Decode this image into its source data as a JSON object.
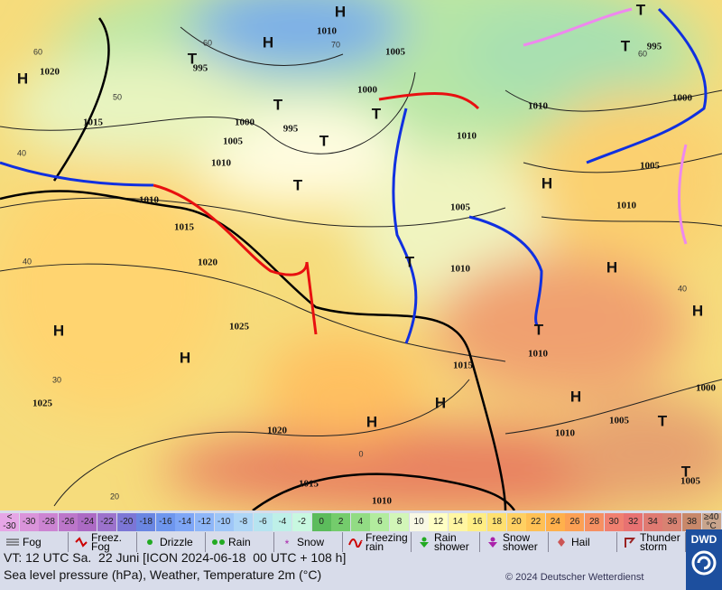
{
  "map": {
    "pressure_labels": [
      "1020",
      "1015",
      "1010",
      "1015",
      "1020",
      "1025",
      "1025",
      "1020",
      "1015",
      "1010",
      "1010",
      "1005",
      "1000",
      "1000",
      "995",
      "1005",
      "1010",
      "995",
      "1010",
      "1005",
      "1010",
      "1015",
      "1010",
      "1010",
      "995",
      "1000",
      "1005",
      "1010",
      "1000",
      "1005",
      "1010",
      "1005"
    ],
    "temperature_labels": [
      "60",
      "50",
      "40",
      "40",
      "30",
      "20",
      "60",
      "70",
      "60",
      "40",
      "0"
    ],
    "highs": [
      "H",
      "H",
      "H",
      "H",
      "H",
      "H",
      "H",
      "H",
      "H",
      "H",
      "H"
    ],
    "thunder": [
      "T",
      "T",
      "T",
      "T",
      "T",
      "T",
      "T",
      "T",
      "T",
      "T",
      "T"
    ]
  },
  "scale": [
    {
      "label": "<\n-30",
      "color": "#e6a6e6"
    },
    {
      "label": "-30",
      "color": "#da94da"
    },
    {
      "label": "-28",
      "color": "#cc84d2"
    },
    {
      "label": "-26",
      "color": "#bc76ca"
    },
    {
      "label": "-24",
      "color": "#ac6ac4"
    },
    {
      "label": "-22",
      "color": "#9c72cc"
    },
    {
      "label": "-20",
      "color": "#7c76d6"
    },
    {
      "label": "-18",
      "color": "#6a86e2"
    },
    {
      "label": "-16",
      "color": "#6e96ee"
    },
    {
      "label": "-14",
      "color": "#7ea6f6"
    },
    {
      "label": "-12",
      "color": "#8eb6f8"
    },
    {
      "label": "-10",
      "color": "#9ec6f8"
    },
    {
      "label": "-8",
      "color": "#aed6f6"
    },
    {
      "label": "-6",
      "color": "#b6e4f0"
    },
    {
      "label": "-4",
      "color": "#bef0e8"
    },
    {
      "label": "-2",
      "color": "#c8f8e0"
    },
    {
      "label": "0",
      "color": "#5cbc5c"
    },
    {
      "label": "2",
      "color": "#74cc6c"
    },
    {
      "label": "4",
      "color": "#92dc84"
    },
    {
      "label": "6",
      "color": "#b2ec9e"
    },
    {
      "label": "8",
      "color": "#d2f6b8"
    },
    {
      "label": "10",
      "color": "#f8f8e4"
    },
    {
      "label": "12",
      "color": "#ffffc4"
    },
    {
      "label": "14",
      "color": "#fff6a2"
    },
    {
      "label": "16",
      "color": "#ffee84"
    },
    {
      "label": "18",
      "color": "#ffe070"
    },
    {
      "label": "20",
      "color": "#ffd062"
    },
    {
      "label": "22",
      "color": "#ffc054"
    },
    {
      "label": "24",
      "color": "#ffb04c"
    },
    {
      "label": "26",
      "color": "#fca054"
    },
    {
      "label": "28",
      "color": "#f69062"
    },
    {
      "label": "30",
      "color": "#f08070"
    },
    {
      "label": "32",
      "color": "#e87272"
    },
    {
      "label": "34",
      "color": "#e07a72"
    },
    {
      "label": "36",
      "color": "#d88272"
    },
    {
      "label": "38",
      "color": "#c8886a"
    },
    {
      "label": "≥40\n°C",
      "color": "#c8a48c"
    }
  ],
  "weather_legend": [
    "Fog",
    "Freez.\nFog",
    "Drizzle",
    "Rain",
    "Snow",
    "Freezing\nrain",
    "Rain\nshower",
    "Snow\nshower",
    "Hail",
    "Thunder\nstorm"
  ],
  "logo": "DWD",
  "valid_time": "VT: 12 UTC Sa.  22 Juni [ICON 2024-06-18  00 UTC + 108 h]",
  "description": "Sea level pressure (hPa), Weather, Temperature 2m (°C)",
  "copyright": "© 2024 Deutscher Wetterdienst"
}
